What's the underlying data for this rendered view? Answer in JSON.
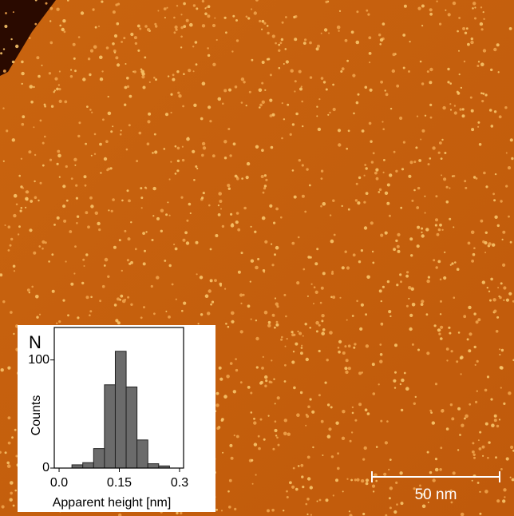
{
  "image": {
    "panel_label": "N",
    "scale_bar_label": "50 nm"
  },
  "chart_data": {
    "type": "histogram",
    "xlabel": "Apparent height [nm]",
    "ylabel": "Counts",
    "bins": [
      0.032,
      0.059,
      0.086,
      0.113,
      0.14,
      0.167,
      0.194,
      0.221,
      0.248,
      0.275
    ],
    "values": [
      3,
      5,
      18,
      77,
      108,
      75,
      26,
      4,
      2
    ],
    "color": "#6b6b6b",
    "xlim": [
      -0.012,
      0.31
    ],
    "xticks": [
      {
        "value": 0,
        "label": "0.0"
      },
      0.15,
      0.3
    ],
    "ylim": [
      0,
      130
    ],
    "yticks": [
      0,
      100
    ]
  }
}
